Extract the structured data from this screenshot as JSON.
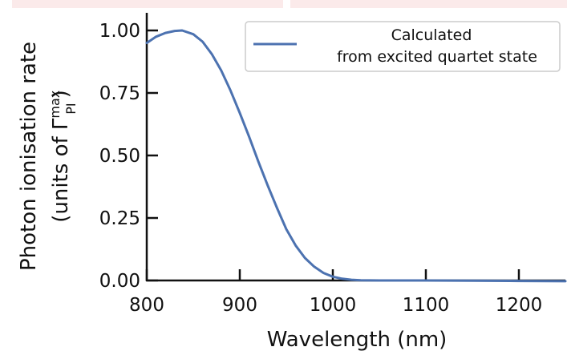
{
  "chart_data": {
    "type": "line",
    "title": "",
    "xlabel": "Wavelength (nm)",
    "ylabel_line1": "Photon ionisation rate",
    "ylabel_line2_prefix": "(units of Γ",
    "ylabel_sup": "max",
    "ylabel_sub": "PI",
    "ylabel_line2_suffix": ")",
    "xlim": [
      800,
      1250
    ],
    "ylim": [
      0,
      1.0
    ],
    "xticks": [
      800,
      900,
      1000,
      1100,
      1200
    ],
    "xtick_labels": [
      "800",
      "900",
      "1000",
      "1100",
      "1200"
    ],
    "yticks": [
      0,
      0.25,
      0.5,
      0.75,
      1.0
    ],
    "ytick_labels": [
      "0.00",
      "0.25",
      "0.50",
      "0.75",
      "1.00"
    ],
    "grid": false,
    "legend_position": "top-right",
    "series": [
      {
        "name": "Calculated from excited quartet state",
        "legend_line1": "Calculated",
        "legend_line2": "from excited quartet state",
        "color": "#4c72b0",
        "x": [
          800,
          810,
          820,
          830,
          838,
          850,
          860,
          870,
          880,
          890,
          900,
          910,
          920,
          930,
          940,
          950,
          960,
          970,
          980,
          990,
          1000,
          1010,
          1020,
          1030,
          1050,
          1100,
          1150,
          1200,
          1250
        ],
        "y": [
          0.95,
          0.975,
          0.99,
          0.998,
          1.0,
          0.985,
          0.955,
          0.905,
          0.84,
          0.76,
          0.67,
          0.575,
          0.475,
          0.38,
          0.29,
          0.205,
          0.14,
          0.09,
          0.055,
          0.03,
          0.015,
          0.007,
          0.003,
          0.001,
          0.0,
          0.0,
          -0.001,
          -0.002,
          -0.003
        ]
      }
    ]
  }
}
